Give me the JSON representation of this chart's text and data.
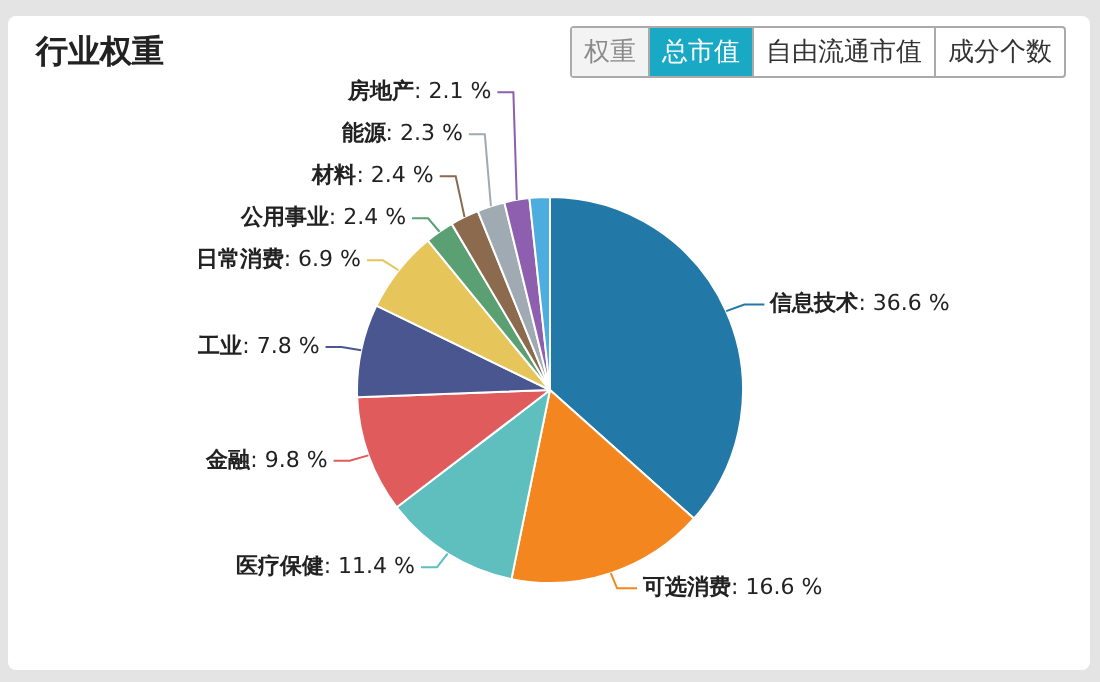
{
  "chart_data": {
    "type": "pie",
    "title": "行业权重",
    "annotations": [
      "权重",
      "总市值",
      "自由流通市值",
      "成分个数"
    ],
    "categories": [
      "信息技术",
      "可选消费",
      "医疗保健",
      "金融",
      "工业",
      "日常消费",
      "公用事业",
      "材料",
      "能源",
      "房地产",
      null
    ],
    "values": [
      36.6,
      16.6,
      11.4,
      9.8,
      7.8,
      6.9,
      2.4,
      2.4,
      2.3,
      2.1,
      1.7
    ],
    "colors": [
      "#2278a6",
      "#f4861f",
      "#5fbfbf",
      "#e05c5c",
      "#4a5690",
      "#e6c55a",
      "#5ba073",
      "#8b6a4e",
      "#a0aab2",
      "#8d5fae",
      "#4dadde"
    ],
    "value_labels": [
      ": 36.6 %",
      ": 16.6 %",
      ": 11.4 %",
      ": 9.8 %",
      ": 7.8 %",
      ": 6.9 %",
      ": 2.4 %",
      ": 2.4 %",
      ": 2.3 %",
      ": 2.1 %",
      null
    ],
    "legend": false
  }
}
